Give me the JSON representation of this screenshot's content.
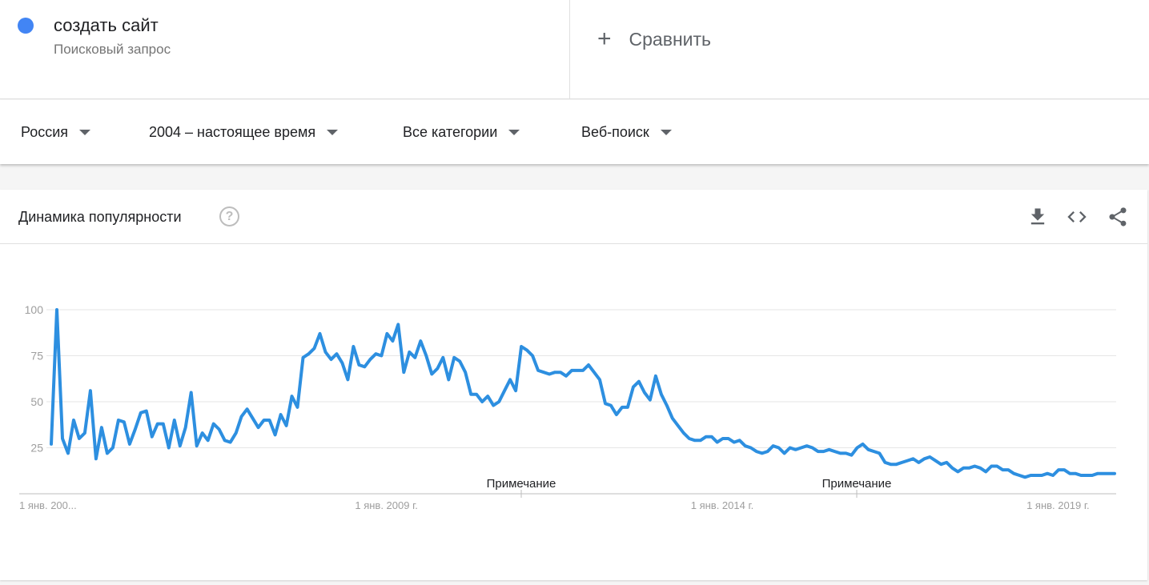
{
  "search": {
    "term": "создать сайт",
    "term_type": "Поисковый запрос",
    "term_color": "#4285f4",
    "compare_label": "Сравнить"
  },
  "filters": {
    "region": "Россия",
    "period": "2004 – настоящее время",
    "category": "Все категории",
    "search_type": "Веб-поиск"
  },
  "card": {
    "title": "Динамика популярности",
    "help_icon": "question-circle-icon",
    "actions": [
      "download-icon",
      "embed-code-icon",
      "share-icon"
    ]
  },
  "chart_data": {
    "type": "line",
    "line_color": "#2d8fe0",
    "grid": true,
    "ylim": [
      0,
      100
    ],
    "y_ticks": [
      "100",
      "75",
      "50",
      "25"
    ],
    "x_ticks": [
      "1 янв. 200...",
      "1 янв. 2009 г.",
      "1 янв. 2014 г.",
      "1 янв. 2019 г."
    ],
    "annotations": [
      "Примечание",
      "Примечание"
    ],
    "series": [
      {
        "x_start": "2004-01",
        "x_step": "month",
        "values": [
          27,
          100,
          30,
          22,
          40,
          30,
          33,
          56,
          19,
          36,
          22,
          25,
          40,
          39,
          27,
          35,
          44,
          45,
          31,
          38,
          38,
          25,
          40,
          26,
          36,
          55,
          26,
          33,
          29,
          38,
          35,
          29,
          28,
          33,
          42,
          46,
          41,
          36,
          40,
          40,
          32,
          43,
          37,
          53,
          47,
          74,
          76,
          79,
          87,
          77,
          73,
          76,
          71,
          62,
          80,
          70,
          69,
          73,
          76,
          75,
          87,
          83,
          92,
          66,
          77,
          74,
          83,
          75,
          65,
          68,
          74,
          62,
          74,
          72,
          66,
          54,
          54,
          50,
          53,
          48,
          50,
          56,
          62,
          56,
          80,
          78,
          75,
          67,
          66,
          65,
          66,
          66,
          64,
          67,
          67,
          67,
          70,
          66,
          62,
          49,
          48,
          43,
          47,
          47,
          58,
          61,
          55,
          51,
          64,
          54,
          48,
          41,
          37,
          33,
          30,
          29,
          29,
          31,
          31,
          28,
          30,
          30,
          28,
          29,
          26,
          25,
          23,
          22,
          23,
          26,
          25,
          22,
          25,
          24,
          25,
          26,
          25,
          23,
          23,
          24,
          23,
          22,
          22,
          21,
          25,
          27,
          24,
          23,
          22,
          17,
          16,
          16,
          17,
          18,
          19,
          17,
          19,
          20,
          18,
          16,
          17,
          14,
          12,
          14,
          14,
          15,
          14,
          12,
          15,
          15,
          13,
          13,
          11,
          10,
          9,
          10,
          10,
          10,
          11,
          10,
          13,
          13,
          11,
          11,
          10,
          10,
          10,
          11,
          11,
          11,
          11
        ]
      }
    ]
  }
}
